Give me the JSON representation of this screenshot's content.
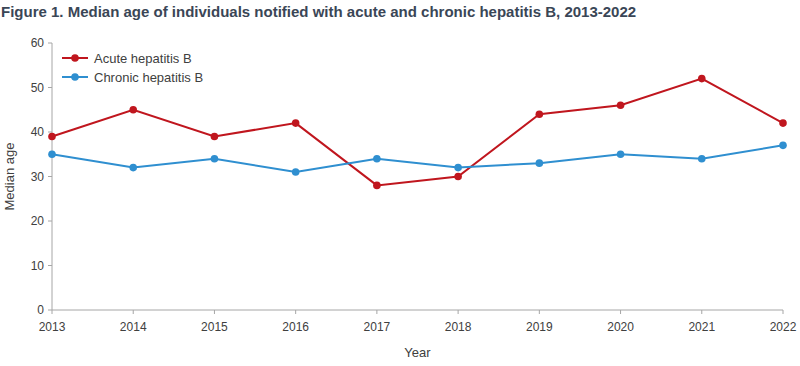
{
  "chart_data": {
    "type": "line",
    "title": "Figure 1. Median age of individuals notified with acute and chronic hepatitis B, 2013-2022",
    "x_label": "Year",
    "y_label": "Median age",
    "x": [
      2013,
      2014,
      2015,
      2016,
      2017,
      2018,
      2019,
      2020,
      2021,
      2022
    ],
    "series": [
      {
        "name": "Acute hepatitis B",
        "color": "#c0161e",
        "marker": "circle",
        "line_style": "solid",
        "values": [
          39,
          45,
          39,
          42,
          28,
          30,
          44,
          46,
          52,
          42
        ]
      },
      {
        "name": "Chronic hepatitis B",
        "color": "#2f8fd0",
        "marker": "circle",
        "line_style": "solid",
        "values": [
          35,
          32,
          34,
          31,
          34,
          32,
          33,
          35,
          34,
          37
        ]
      }
    ],
    "xlim": [
      2013,
      2022
    ],
    "xticks": [
      2013,
      2014,
      2015,
      2016,
      2017,
      2018,
      2019,
      2020,
      2021,
      2022
    ],
    "ylim": [
      0,
      60
    ],
    "yticks": [
      0,
      10,
      20,
      30,
      40,
      50,
      60
    ],
    "grid": false,
    "legend": "top-left"
  }
}
